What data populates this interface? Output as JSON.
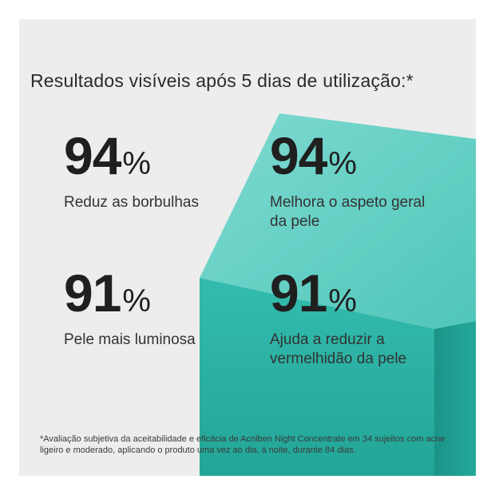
{
  "headline": "Resultados visíveis após 5 dias de utilização:*",
  "stats": [
    {
      "value": "94",
      "unit": "%",
      "label": "Reduz as borbulhas"
    },
    {
      "value": "94",
      "unit": "%",
      "label": "Melhora o aspeto geral da pele"
    },
    {
      "value": "91",
      "unit": "%",
      "label": "Pele mais luminosa"
    },
    {
      "value": "91",
      "unit": "%",
      "label": "Ajuda a reduzir a vermelhidão da pele"
    }
  ],
  "footnote": "*Avaliação subjetiva da aceitabilidade e eficácia de Acniben Night Concentrate em 34 sujeitos com acne ligeiro e moderado, aplicando o produto uma vez ao dia, à noite, durante 84 dias.",
  "colors": {
    "background": "#ededed",
    "cube_top": "#6fd3c9",
    "cube_front": "#2bb3a5",
    "cube_side": "#1f9a8d"
  }
}
